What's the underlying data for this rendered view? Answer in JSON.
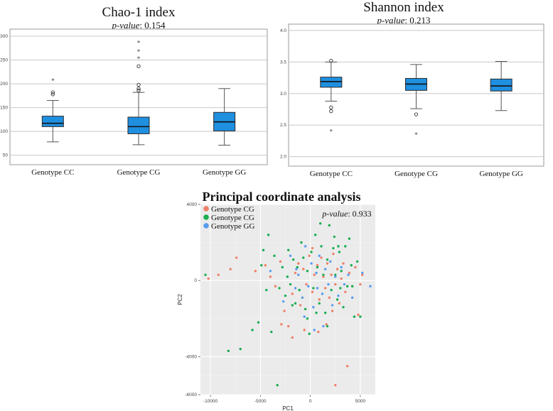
{
  "figure": {
    "panels": [
      "chao1",
      "shannon",
      "pcoa"
    ]
  },
  "chart_data": [
    {
      "id": "chao1",
      "type": "box",
      "title": "Chao-1 index",
      "annotation": {
        "label": "p-value",
        "sep": ": ",
        "value": "0.154"
      },
      "categories": [
        "Genotype CC",
        "Genotype CG",
        "Genotype GG"
      ],
      "ylim": [
        30,
        315
      ],
      "yticks": [
        50,
        100,
        150,
        200,
        250,
        300
      ],
      "grid": true,
      "boxes": [
        {
          "whisker_low": 78,
          "q1": 110,
          "median": 117,
          "q3": 132,
          "whisker_high": 165,
          "outliers": [
            {
              "v": 178,
              "s": "o"
            },
            {
              "v": 182,
              "s": "o"
            },
            {
              "v": 207,
              "s": "*"
            }
          ]
        },
        {
          "whisker_low": 72,
          "q1": 95,
          "median": 110,
          "q3": 130,
          "whisker_high": 182,
          "outliers": [
            {
              "v": 186,
              "s": "o"
            },
            {
              "v": 190,
              "s": "o"
            },
            {
              "v": 198,
              "s": "o"
            },
            {
              "v": 237,
              "s": "o"
            },
            {
              "v": 253,
              "s": "*"
            },
            {
              "v": 268,
              "s": "*"
            },
            {
              "v": 287,
              "s": "*"
            }
          ]
        },
        {
          "whisker_low": 71,
          "q1": 101,
          "median": 120,
          "q3": 140,
          "whisker_high": 190,
          "outliers": []
        }
      ],
      "box_color": "#1f8fe0"
    },
    {
      "id": "shannon",
      "type": "box",
      "title": "Shannon index",
      "annotation": {
        "label": "p-value",
        "sep": ": ",
        "value": "0.213"
      },
      "categories": [
        "Genotype CC",
        "Genotype CG",
        "Genotype GG"
      ],
      "ylim": [
        1.85,
        4.1
      ],
      "yticks": [
        2.0,
        2.5,
        3.0,
        3.5,
        4.0
      ],
      "ytick_labels": [
        "2.0",
        "2.5",
        "3.0",
        "3.5",
        "4.0"
      ],
      "grid": true,
      "boxes": [
        {
          "whisker_low": 2.88,
          "q1": 3.1,
          "median": 3.19,
          "q3": 3.26,
          "whisker_high": 3.5,
          "outliers": [
            {
              "v": 2.72,
              "s": "o"
            },
            {
              "v": 2.78,
              "s": "o"
            },
            {
              "v": 3.52,
              "s": "o"
            },
            {
              "v": 2.4,
              "s": "*"
            }
          ]
        },
        {
          "whisker_low": 2.76,
          "q1": 3.05,
          "median": 3.15,
          "q3": 3.24,
          "whisker_high": 3.46,
          "outliers": [
            {
              "v": 2.67,
              "s": "o"
            },
            {
              "v": 2.35,
              "s": "*"
            }
          ]
        },
        {
          "whisker_low": 2.73,
          "q1": 3.04,
          "median": 3.12,
          "q3": 3.23,
          "whisker_high": 3.51,
          "outliers": []
        }
      ],
      "box_color": "#1f8fe0"
    },
    {
      "id": "pcoa",
      "type": "scatter",
      "title": "Principal coordinate analysis",
      "annotation": {
        "label": "p-value",
        "sep": ": ",
        "value": "0.933"
      },
      "xlabel": "PC1",
      "ylabel": "PC2",
      "xlim": [
        -11000,
        6500
      ],
      "ylim": [
        -6000,
        4000
      ],
      "xticks": [
        -10000,
        -5000,
        0,
        5000
      ],
      "yticks": [
        -6000,
        -4000,
        0,
        4000
      ],
      "legend_position": "top-left",
      "series": [
        {
          "name": "Genotype CG",
          "color": "#f08068",
          "points": [
            [
              -10200,
              100
            ],
            [
              -9200,
              300
            ],
            [
              -8000,
              600
            ],
            [
              -7400,
              1200
            ],
            [
              -5500,
              500
            ],
            [
              -4500,
              800
            ],
            [
              -4000,
              200
            ],
            [
              -3500,
              -300
            ],
            [
              -3000,
              1000
            ],
            [
              -2600,
              -1600
            ],
            [
              -2200,
              -2400
            ],
            [
              -1800,
              -700
            ],
            [
              -1500,
              400
            ],
            [
              -1200,
              900
            ],
            [
              -1000,
              -1300
            ],
            [
              -700,
              600
            ],
            [
              -400,
              -200
            ],
            [
              -100,
              1300
            ],
            [
              200,
              -600
            ],
            [
              400,
              300
            ],
            [
              700,
              800
            ],
            [
              900,
              -1000
            ],
            [
              1100,
              1200
            ],
            [
              1300,
              200
            ],
            [
              1500,
              -400
            ],
            [
              1700,
              900
            ],
            [
              1900,
              -900
            ],
            [
              2100,
              300
            ],
            [
              2300,
              1400
            ],
            [
              2500,
              -200
            ],
            [
              2700,
              600
            ],
            [
              2900,
              -1200
            ],
            [
              3100,
              100
            ],
            [
              3300,
              900
            ],
            [
              3500,
              -600
            ],
            [
              3700,
              -4500
            ],
            [
              3900,
              400
            ],
            [
              4200,
              -300
            ],
            [
              4500,
              700
            ],
            [
              4800,
              -1800
            ],
            [
              5000,
              -200
            ],
            [
              5200,
              300
            ],
            [
              -600,
              -2600
            ],
            [
              -1800,
              -3000
            ],
            [
              800,
              -2700
            ],
            [
              1600,
              -2300
            ],
            [
              2500,
              -5500
            ],
            [
              -2900,
              -2300
            ],
            [
              200,
              1700
            ],
            [
              2200,
              -1600
            ]
          ]
        },
        {
          "name": "Genotype CG",
          "color": "#1aad52",
          "points": [
            [
              -10500,
              300
            ],
            [
              -8200,
              -3700
            ],
            [
              -7000,
              -3600
            ],
            [
              -5800,
              -2600
            ],
            [
              -5200,
              -2200
            ],
            [
              -4900,
              800
            ],
            [
              -4700,
              1600
            ],
            [
              -4400,
              -500
            ],
            [
              -4200,
              2400
            ],
            [
              -3900,
              -2700
            ],
            [
              -3600,
              1300
            ],
            [
              -3300,
              -5500
            ],
            [
              -3100,
              -400
            ],
            [
              -2800,
              700
            ],
            [
              -2500,
              -800
            ],
            [
              -2200,
              1600
            ],
            [
              -2000,
              -200
            ],
            [
              -1700,
              1100
            ],
            [
              -1500,
              -1200
            ],
            [
              -1300,
              700
            ],
            [
              -1100,
              -500
            ],
            [
              -900,
              2000
            ],
            [
              -700,
              1200
            ],
            [
              -500,
              -1500
            ],
            [
              -300,
              500
            ],
            [
              -100,
              -2800
            ],
            [
              100,
              1500
            ],
            [
              300,
              -400
            ],
            [
              500,
              2400
            ],
            [
              700,
              700
            ],
            [
              900,
              -1200
            ],
            [
              1100,
              1800
            ],
            [
              1300,
              300
            ],
            [
              1500,
              -1700
            ],
            [
              1700,
              1100
            ],
            [
              1900,
              2900
            ],
            [
              2100,
              -500
            ],
            [
              2300,
              1700
            ],
            [
              2500,
              300
            ],
            [
              2700,
              -1000
            ],
            [
              2900,
              1500
            ],
            [
              3100,
              500
            ],
            [
              3300,
              -1400
            ],
            [
              3500,
              1800
            ],
            [
              3700,
              -300
            ],
            [
              3900,
              2200
            ],
            [
              4100,
              800
            ],
            [
              4400,
              -1900
            ],
            [
              4700,
              1000
            ],
            [
              5000,
              -1900
            ],
            [
              -2300,
              200
            ],
            [
              -300,
              -2000
            ],
            [
              1700,
              -2400
            ],
            [
              2800,
              1800
            ],
            [
              4200,
              -300
            ],
            [
              1000,
              3000
            ],
            [
              -1800,
              -1300
            ],
            [
              3000,
              -400
            ],
            [
              600,
              -1700
            ],
            [
              2400,
              2300
            ]
          ]
        },
        {
          "name": "Genotype GG",
          "color": "#5a9cf0",
          "points": [
            [
              -4000,
              500
            ],
            [
              -2700,
              -1100
            ],
            [
              -2000,
              1300
            ],
            [
              -1500,
              -400
            ],
            [
              -1200,
              300
            ],
            [
              -800,
              -900
            ],
            [
              -500,
              1800
            ],
            [
              -200,
              -300
            ],
            [
              100,
              900
            ],
            [
              300,
              -1400
            ],
            [
              600,
              400
            ],
            [
              900,
              1300
            ],
            [
              1200,
              -700
            ],
            [
              1500,
              600
            ],
            [
              1800,
              -200
            ],
            [
              2000,
              1000
            ],
            [
              2200,
              -1300
            ],
            [
              2500,
              200
            ],
            [
              2800,
              -800
            ],
            [
              3100,
              700
            ],
            [
              3400,
              -200
            ],
            [
              3800,
              300
            ],
            [
              4200,
              -900
            ],
            [
              5200,
              400
            ],
            [
              6000,
              -300
            ],
            [
              1300,
              -2400
            ],
            [
              -600,
              -1900
            ],
            [
              700,
              -400
            ],
            [
              -1400,
              600
            ],
            [
              400,
              -2600
            ]
          ]
        }
      ]
    }
  ]
}
